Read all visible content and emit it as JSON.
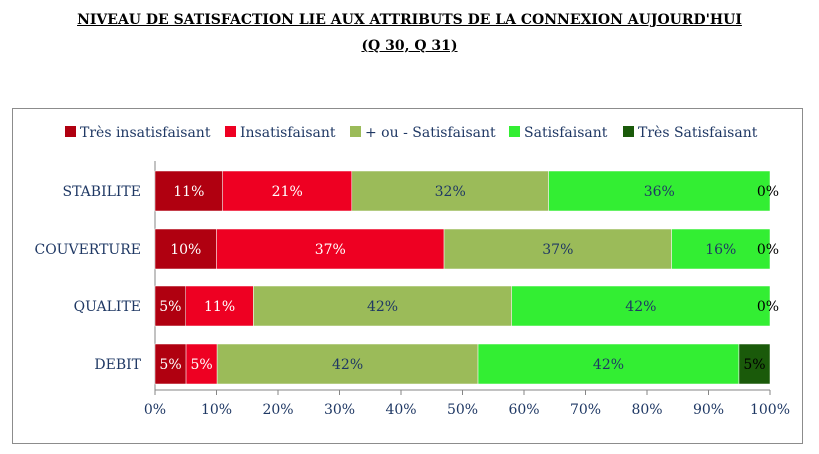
{
  "title": "NIVEAU DE SATISFACTION LIE AUX ATTRIBUTS DE LA CONNEXION AUJOURD'HUI",
  "subtitle": "(Q 30, Q 31)",
  "chart_data": {
    "type": "bar",
    "orientation": "horizontal",
    "stacked": "percent",
    "categories": [
      "STABILITE",
      "COUVERTURE",
      "QUALITE",
      "DEBIT"
    ],
    "series": [
      {
        "name": "Très insatisfaisant",
        "color": "#b00010",
        "values": [
          11,
          10,
          5,
          5
        ],
        "labels": [
          "11%",
          "10%",
          "5%",
          "5%"
        ]
      },
      {
        "name": "Insatisfaisant",
        "color": "#ee0022",
        "values": [
          21,
          37,
          11,
          5
        ],
        "labels": [
          "21%",
          "37%",
          "11%",
          "5%"
        ]
      },
      {
        "name": "+ ou - Satisfaisant",
        "color": "#9bbb59",
        "values": [
          32,
          37,
          42,
          42
        ],
        "labels": [
          "32%",
          "37%",
          "42%",
          "42%"
        ]
      },
      {
        "name": "Satisfaisant",
        "color": "#33ee33",
        "values": [
          36,
          16,
          42,
          42
        ],
        "labels": [
          "36%",
          "16%",
          "42%",
          "42%"
        ]
      },
      {
        "name": "Très Satisfaisant",
        "color": "#1a5a0a",
        "values": [
          0,
          0,
          0,
          5
        ],
        "labels": [
          "0%",
          "0%",
          "0%",
          "5%"
        ]
      }
    ],
    "x_ticks": [
      "0%",
      "10%",
      "20%",
      "30%",
      "40%",
      "50%",
      "60%",
      "70%",
      "80%",
      "90%",
      "100%"
    ],
    "xlim": [
      0,
      100
    ],
    "legend_position": "top",
    "grid": false
  }
}
